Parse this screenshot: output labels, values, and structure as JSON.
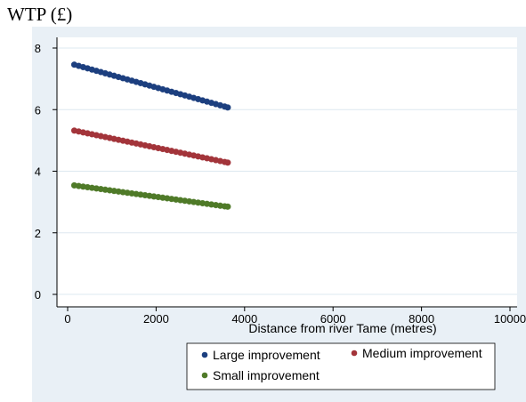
{
  "chart_data": {
    "type": "scatter",
    "ylabel": "WTP (£)",
    "xlabel": "Distance from river Tame (metres)",
    "xlim": [
      0,
      10000
    ],
    "ylim": [
      0,
      8
    ],
    "xticks": [
      "0",
      "2000",
      "4000",
      "6000",
      "8000",
      "10000"
    ],
    "yticks": [
      "0",
      "2",
      "4",
      "6",
      "8"
    ],
    "grid": "horizontal",
    "legend_position": "bottom-right",
    "colors": {
      "plot_background": "#ffffff",
      "outer_background": "#e9f0f6",
      "gridline": "#dde8f0"
    },
    "series": [
      {
        "name": "Large improvement",
        "color": "#1c3f7f",
        "points": [
          [
            150,
            7.46
          ],
          [
            250,
            7.42
          ],
          [
            350,
            7.38
          ],
          [
            450,
            7.34
          ],
          [
            550,
            7.3
          ],
          [
            650,
            7.26
          ],
          [
            750,
            7.22
          ],
          [
            850,
            7.18
          ],
          [
            950,
            7.14
          ],
          [
            1050,
            7.1
          ],
          [
            1150,
            7.06
          ],
          [
            1250,
            7.02
          ],
          [
            1350,
            6.98
          ],
          [
            1450,
            6.94
          ],
          [
            1550,
            6.9
          ],
          [
            1650,
            6.86
          ],
          [
            1750,
            6.82
          ],
          [
            1850,
            6.78
          ],
          [
            1950,
            6.74
          ],
          [
            2050,
            6.7
          ],
          [
            2150,
            6.66
          ],
          [
            2250,
            6.62
          ],
          [
            2350,
            6.58
          ],
          [
            2450,
            6.54
          ],
          [
            2550,
            6.5
          ],
          [
            2650,
            6.46
          ],
          [
            2750,
            6.42
          ],
          [
            2850,
            6.38
          ],
          [
            2950,
            6.34
          ],
          [
            3050,
            6.3
          ],
          [
            3150,
            6.26
          ],
          [
            3250,
            6.22
          ],
          [
            3350,
            6.18
          ],
          [
            3450,
            6.14
          ],
          [
            3550,
            6.1
          ],
          [
            3620,
            6.07
          ]
        ]
      },
      {
        "name": "Medium improvement",
        "color": "#a3343a",
        "points": [
          [
            150,
            5.32
          ],
          [
            250,
            5.29
          ],
          [
            350,
            5.26
          ],
          [
            450,
            5.23
          ],
          [
            550,
            5.2
          ],
          [
            650,
            5.17
          ],
          [
            750,
            5.14
          ],
          [
            850,
            5.11
          ],
          [
            950,
            5.08
          ],
          [
            1050,
            5.05
          ],
          [
            1150,
            5.02
          ],
          [
            1250,
            4.99
          ],
          [
            1350,
            4.96
          ],
          [
            1450,
            4.93
          ],
          [
            1550,
            4.9
          ],
          [
            1650,
            4.87
          ],
          [
            1750,
            4.84
          ],
          [
            1850,
            4.81
          ],
          [
            1950,
            4.78
          ],
          [
            2050,
            4.75
          ],
          [
            2150,
            4.72
          ],
          [
            2250,
            4.69
          ],
          [
            2350,
            4.66
          ],
          [
            2450,
            4.63
          ],
          [
            2550,
            4.6
          ],
          [
            2650,
            4.57
          ],
          [
            2750,
            4.54
          ],
          [
            2850,
            4.51
          ],
          [
            2950,
            4.48
          ],
          [
            3050,
            4.45
          ],
          [
            3150,
            4.42
          ],
          [
            3250,
            4.39
          ],
          [
            3350,
            4.36
          ],
          [
            3450,
            4.33
          ],
          [
            3550,
            4.3
          ],
          [
            3620,
            4.28
          ]
        ]
      },
      {
        "name": "Small improvement",
        "color": "#4f7a28",
        "points": [
          [
            150,
            3.54
          ],
          [
            250,
            3.52
          ],
          [
            350,
            3.5
          ],
          [
            450,
            3.48
          ],
          [
            550,
            3.46
          ],
          [
            650,
            3.44
          ],
          [
            750,
            3.42
          ],
          [
            850,
            3.4
          ],
          [
            950,
            3.38
          ],
          [
            1050,
            3.36
          ],
          [
            1150,
            3.34
          ],
          [
            1250,
            3.32
          ],
          [
            1350,
            3.3
          ],
          [
            1450,
            3.28
          ],
          [
            1550,
            3.26
          ],
          [
            1650,
            3.24
          ],
          [
            1750,
            3.22
          ],
          [
            1850,
            3.2
          ],
          [
            1950,
            3.18
          ],
          [
            2050,
            3.16
          ],
          [
            2150,
            3.14
          ],
          [
            2250,
            3.12
          ],
          [
            2350,
            3.1
          ],
          [
            2450,
            3.08
          ],
          [
            2550,
            3.06
          ],
          [
            2650,
            3.04
          ],
          [
            2750,
            3.02
          ],
          [
            2850,
            3.0
          ],
          [
            2950,
            2.98
          ],
          [
            3050,
            2.96
          ],
          [
            3150,
            2.94
          ],
          [
            3250,
            2.92
          ],
          [
            3350,
            2.9
          ],
          [
            3450,
            2.88
          ],
          [
            3550,
            2.86
          ],
          [
            3620,
            2.85
          ]
        ]
      }
    ]
  }
}
